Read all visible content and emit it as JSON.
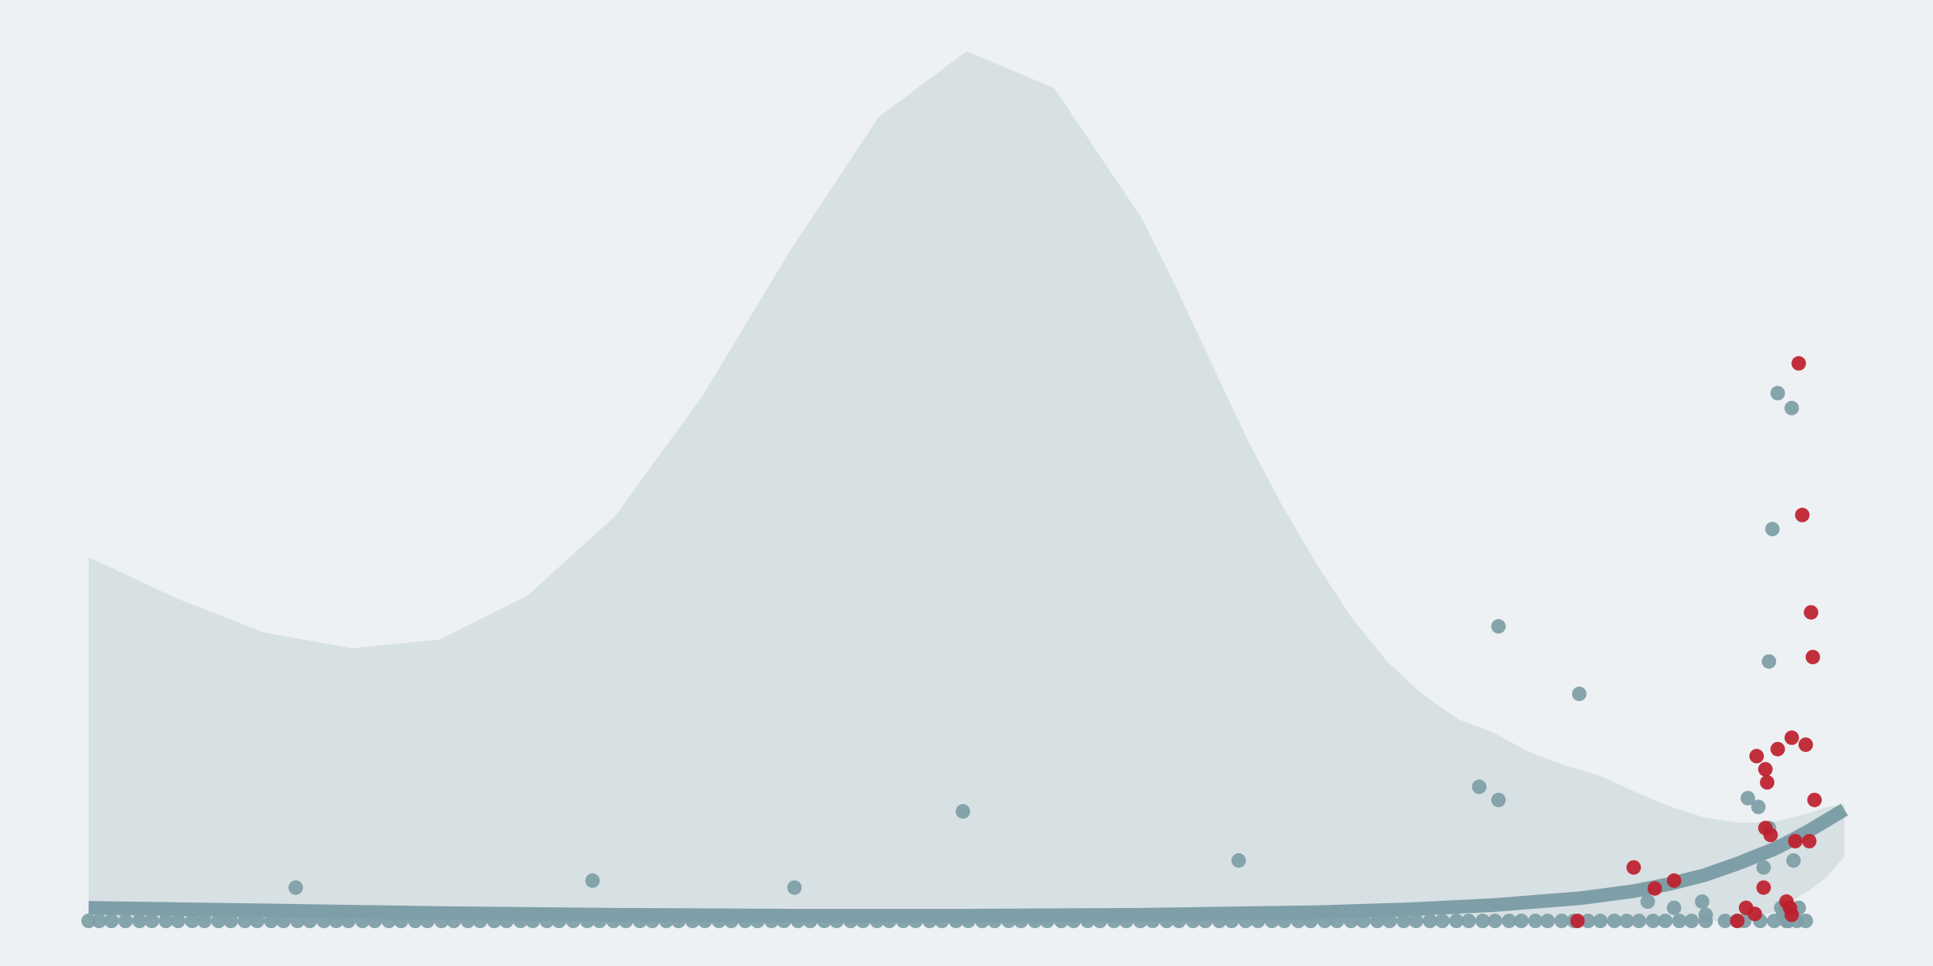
{
  "colors": {
    "background": "#edf1f3",
    "band": "#d7e0e3",
    "band_inner": "#e5ebed",
    "trend": "#7f9fa8",
    "series_gray": "#7f9fa8",
    "series_red": "#be1e2d"
  },
  "chart_data": {
    "type": "scatter",
    "title": "",
    "xlabel": "",
    "ylabel": "",
    "xlim": [
      0,
      100
    ],
    "ylim": [
      0,
      100
    ],
    "grid": false,
    "legend": "none",
    "axes_visible": false,
    "confidence_band": {
      "x": [
        0,
        5,
        10,
        15,
        20,
        25,
        30,
        35,
        40,
        45,
        50,
        55,
        60,
        62,
        64,
        66,
        68,
        70,
        72,
        74,
        76,
        78,
        80,
        82,
        84,
        86,
        88,
        90,
        92,
        94,
        96,
        97,
        98,
        99,
        100
      ],
      "upper": [
        41.5,
        36.8,
        32.9,
        31.1,
        32.1,
        37.1,
        46.2,
        60.0,
        76.6,
        91.7,
        99.2,
        95.0,
        80.1,
        72.0,
        63.4,
        54.9,
        47.3,
        40.5,
        34.4,
        29.5,
        25.8,
        23.0,
        21.5,
        19.3,
        17.8,
        16.6,
        14.8,
        13.1,
        11.8,
        11.2,
        11.3,
        11.8,
        12.3,
        13.0,
        13.3
      ],
      "lower": [
        0,
        0,
        0,
        0,
        0,
        0,
        0,
        0,
        0,
        0,
        0,
        0,
        0,
        0,
        0,
        0,
        0,
        0,
        0,
        0,
        0,
        0,
        0,
        0,
        0,
        0,
        0,
        0,
        0,
        0,
        1.0,
        2.3,
        3.5,
        5.0,
        7.4
      ]
    },
    "trend": {
      "x": [
        0,
        10,
        20,
        30,
        40,
        50,
        60,
        70,
        75,
        80,
        85,
        88,
        90,
        92,
        94,
        96,
        97,
        98,
        99,
        100
      ],
      "y": [
        1.5,
        1.2,
        0.9,
        0.7,
        0.6,
        0.6,
        0.7,
        1.0,
        1.3,
        1.8,
        2.6,
        3.4,
        4.2,
        5.2,
        6.6,
        8.2,
        9.2,
        10.3,
        11.5,
        12.7
      ]
    },
    "series": [
      {
        "color": "gray",
        "points": [
          [
            0.0,
            0
          ],
          [
            0.6,
            0
          ],
          [
            1.3,
            0
          ],
          [
            2.1,
            0
          ],
          [
            2.9,
            0
          ],
          [
            3.6,
            0
          ],
          [
            4.4,
            0
          ],
          [
            5.1,
            0
          ],
          [
            5.9,
            0
          ],
          [
            6.6,
            0
          ],
          [
            7.4,
            0
          ],
          [
            8.1,
            0
          ],
          [
            8.9,
            0
          ],
          [
            9.6,
            0
          ],
          [
            10.4,
            0
          ],
          [
            11.1,
            0
          ],
          [
            11.8,
            3.8
          ],
          [
            11.9,
            0
          ],
          [
            12.6,
            0
          ],
          [
            13.4,
            0
          ],
          [
            14.1,
            0
          ],
          [
            14.8,
            0
          ],
          [
            15.6,
            0
          ],
          [
            16.3,
            0
          ],
          [
            17.1,
            0
          ],
          [
            17.8,
            0
          ],
          [
            18.6,
            0
          ],
          [
            19.3,
            0
          ],
          [
            20.1,
            0
          ],
          [
            20.8,
            0
          ],
          [
            21.6,
            0
          ],
          [
            22.3,
            0
          ],
          [
            23.1,
            0
          ],
          [
            23.8,
            0
          ],
          [
            24.6,
            0
          ],
          [
            25.3,
            0
          ],
          [
            26.1,
            0
          ],
          [
            26.8,
            0
          ],
          [
            27.6,
            0
          ],
          [
            28.4,
            0
          ],
          [
            28.7,
            4.6
          ],
          [
            29.1,
            0
          ],
          [
            29.9,
            0
          ],
          [
            30.6,
            0
          ],
          [
            31.4,
            0
          ],
          [
            32.1,
            0
          ],
          [
            32.9,
            0
          ],
          [
            33.6,
            0
          ],
          [
            34.4,
            0
          ],
          [
            35.1,
            0
          ],
          [
            35.9,
            0
          ],
          [
            36.6,
            0
          ],
          [
            37.4,
            0
          ],
          [
            38.1,
            0
          ],
          [
            38.9,
            0
          ],
          [
            39.6,
            0
          ],
          [
            40.2,
            3.8
          ],
          [
            40.4,
            0
          ],
          [
            41.1,
            0
          ],
          [
            41.9,
            0
          ],
          [
            42.6,
            0
          ],
          [
            43.4,
            0
          ],
          [
            44.1,
            0
          ],
          [
            44.9,
            0
          ],
          [
            45.6,
            0
          ],
          [
            46.4,
            0
          ],
          [
            47.1,
            0
          ],
          [
            47.9,
            0
          ],
          [
            48.6,
            0
          ],
          [
            49.4,
            0
          ],
          [
            49.8,
            12.5
          ],
          [
            50.1,
            0
          ],
          [
            50.9,
            0
          ],
          [
            51.6,
            0
          ],
          [
            52.4,
            0
          ],
          [
            53.1,
            0
          ],
          [
            53.9,
            0
          ],
          [
            54.6,
            0
          ],
          [
            55.4,
            0
          ],
          [
            56.1,
            0
          ],
          [
            56.9,
            0
          ],
          [
            57.6,
            0
          ],
          [
            58.4,
            0
          ],
          [
            59.1,
            0
          ],
          [
            59.9,
            0
          ],
          [
            60.6,
            0
          ],
          [
            61.4,
            0
          ],
          [
            62.1,
            0
          ],
          [
            62.9,
            0
          ],
          [
            63.6,
            0
          ],
          [
            64.4,
            0
          ],
          [
            65.1,
            0
          ],
          [
            65.5,
            6.9
          ],
          [
            65.9,
            0
          ],
          [
            66.6,
            0
          ],
          [
            67.4,
            0
          ],
          [
            68.1,
            0
          ],
          [
            68.9,
            0
          ],
          [
            69.6,
            0
          ],
          [
            70.4,
            0
          ],
          [
            71.1,
            0
          ],
          [
            71.9,
            0
          ],
          [
            72.6,
            0
          ],
          [
            73.4,
            0
          ],
          [
            74.1,
            0
          ],
          [
            74.9,
            0
          ],
          [
            75.6,
            0
          ],
          [
            76.4,
            0
          ],
          [
            77.1,
            0
          ],
          [
            77.9,
            0
          ],
          [
            78.6,
            0
          ],
          [
            79.2,
            15.3
          ],
          [
            79.4,
            0
          ],
          [
            80.1,
            0
          ],
          [
            80.3,
            13.8
          ],
          [
            80.3,
            33.6
          ],
          [
            80.9,
            0
          ],
          [
            81.6,
            0
          ],
          [
            82.4,
            0
          ],
          [
            83.1,
            0
          ],
          [
            83.9,
            0
          ],
          [
            84.6,
            0
          ],
          [
            84.9,
            25.9
          ],
          [
            85.4,
            0
          ],
          [
            86.1,
            0
          ],
          [
            86.9,
            0
          ],
          [
            87.6,
            0
          ],
          [
            88.3,
            0
          ],
          [
            88.8,
            2.2
          ],
          [
            89.1,
            0
          ],
          [
            89.8,
            0
          ],
          [
            90.3,
            1.5
          ],
          [
            90.6,
            0
          ],
          [
            91.3,
            0
          ],
          [
            91.9,
            2.2
          ],
          [
            92.1,
            0
          ],
          [
            92.1,
            0.7
          ],
          [
            93.2,
            0
          ],
          [
            93.9,
            0
          ],
          [
            94.3,
            0
          ],
          [
            94.5,
            14.0
          ],
          [
            95.1,
            13.0
          ],
          [
            95.2,
            0
          ],
          [
            95.4,
            6.1
          ],
          [
            95.7,
            10.6
          ],
          [
            95.7,
            29.6
          ],
          [
            95.9,
            44.7
          ],
          [
            96.0,
            0
          ],
          [
            96.2,
            60.2
          ],
          [
            96.4,
            1.5
          ],
          [
            96.5,
            0.8
          ],
          [
            96.7,
            0
          ],
          [
            96.8,
            0
          ],
          [
            97.0,
            58.5
          ],
          [
            97.1,
            6.9
          ],
          [
            97.3,
            0
          ],
          [
            97.4,
            1.5
          ],
          [
            97.8,
            0
          ]
        ]
      },
      {
        "color": "red",
        "points": [
          [
            84.8,
            0
          ],
          [
            88.0,
            6.1
          ],
          [
            89.2,
            3.7
          ],
          [
            90.3,
            4.6
          ],
          [
            93.9,
            0
          ],
          [
            94.4,
            1.5
          ],
          [
            94.9,
            0.8
          ],
          [
            95.0,
            18.8
          ],
          [
            95.4,
            3.8
          ],
          [
            95.5,
            17.3
          ],
          [
            95.5,
            10.6
          ],
          [
            95.6,
            15.8
          ],
          [
            95.8,
            9.8
          ],
          [
            96.2,
            19.6
          ],
          [
            96.7,
            2.2
          ],
          [
            96.9,
            1.5
          ],
          [
            97.0,
            20.9
          ],
          [
            97.0,
            0.7
          ],
          [
            97.2,
            9.1
          ],
          [
            97.4,
            63.6
          ],
          [
            97.6,
            46.3
          ],
          [
            97.8,
            20.1
          ],
          [
            98.0,
            9.1
          ],
          [
            98.1,
            35.2
          ],
          [
            98.2,
            30.1
          ],
          [
            98.3,
            13.8
          ]
        ]
      }
    ]
  }
}
